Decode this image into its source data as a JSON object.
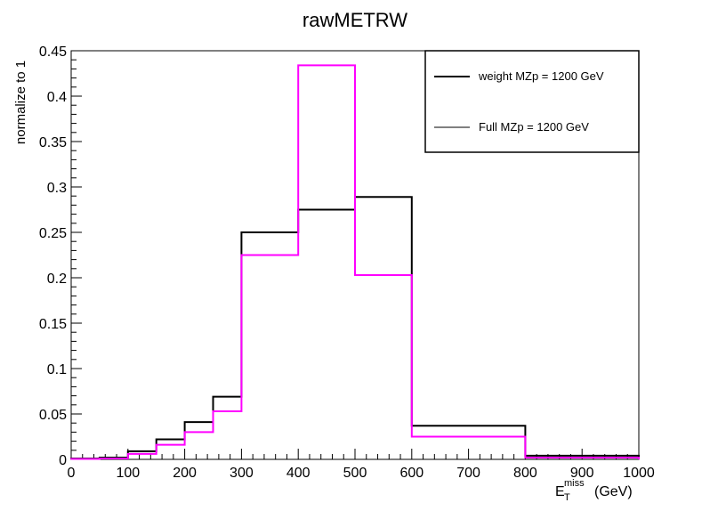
{
  "chart_data": {
    "type": "step-histogram",
    "title": "rawMETRW",
    "ylabel": "normalize to 1",
    "xlabel": {
      "base": "E",
      "sub": "T",
      "sup": "miss",
      "unit": "(GeV)"
    },
    "xlim": [
      0,
      1000
    ],
    "ylim": [
      0,
      0.45
    ],
    "x_ticks": [
      "0",
      "100",
      "200",
      "300",
      "400",
      "500",
      "600",
      "700",
      "800",
      "900",
      "1000"
    ],
    "y_ticks": [
      "0",
      "0.05",
      "0.1",
      "0.15",
      "0.2",
      "0.25",
      "0.3",
      "0.35",
      "0.4",
      "0.45"
    ],
    "bin_edges": [
      0,
      50,
      100,
      150,
      200,
      250,
      300,
      400,
      500,
      600,
      800,
      1000
    ],
    "series": [
      {
        "name": "weight MZp = 1200 GeV",
        "color": "#000000",
        "values": [
          0.001,
          0.002,
          0.009,
          0.022,
          0.041,
          0.069,
          0.25,
          0.275,
          0.289,
          0.037,
          0.004
        ]
      },
      {
        "name": "Full MZp = 1200 GeV",
        "color": "#ff00ff",
        "values": [
          0.0005,
          0.001,
          0.006,
          0.016,
          0.03,
          0.053,
          0.225,
          0.434,
          0.203,
          0.025,
          0.002
        ]
      }
    ],
    "legend": {
      "position": "top-right"
    },
    "grid": false
  }
}
